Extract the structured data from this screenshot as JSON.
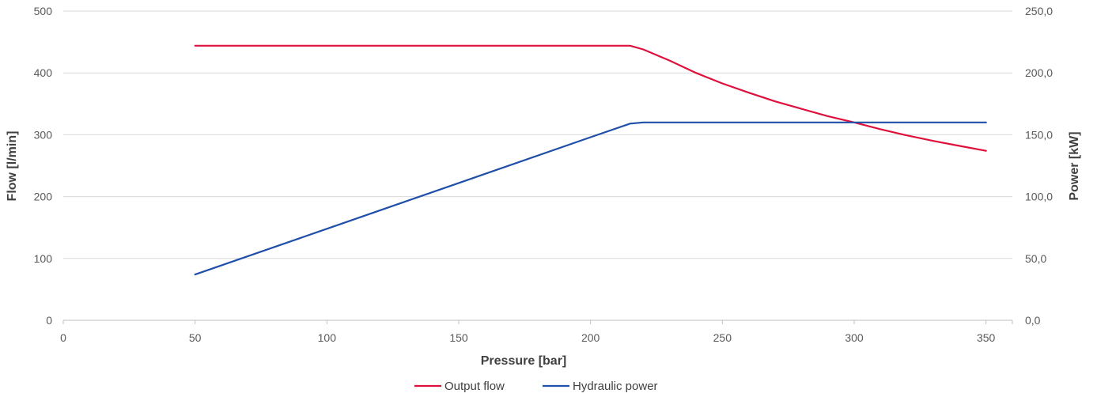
{
  "chart_data": {
    "type": "line",
    "xlabel": "Pressure [bar]",
    "ylabel": "Flow [l/min]",
    "y2label": "Power [kW]",
    "xlim": [
      0,
      360
    ],
    "xticks": [
      "0",
      "50",
      "100",
      "150",
      "200",
      "250",
      "300",
      "350"
    ],
    "ylim": [
      0,
      500
    ],
    "yticks": [
      "0",
      "100",
      "200",
      "300",
      "400",
      "500"
    ],
    "y2lim": [
      0,
      250
    ],
    "y2ticks": [
      "0,0",
      "50,0",
      "100,0",
      "150,0",
      "200,0",
      "250,0"
    ],
    "grid": true,
    "legend_position": "bottom",
    "series": [
      {
        "name": "Output flow",
        "axis": "left",
        "color": "#e0103c",
        "x": [
          50,
          100,
          150,
          200,
          215,
          220,
          230,
          240,
          250,
          260,
          270,
          280,
          290,
          300,
          310,
          320,
          330,
          340,
          350
        ],
        "y": [
          444,
          444,
          444,
          444,
          444,
          438,
          420,
          400,
          383,
          368,
          354,
          342,
          330,
          320,
          309,
          299,
          290,
          282,
          274
        ]
      },
      {
        "name": "Hydraulic power",
        "axis": "right",
        "color": "#1f4fa8",
        "x": [
          50,
          100,
          150,
          200,
          215,
          220,
          250,
          300,
          350
        ],
        "y": [
          37,
          74,
          111,
          148,
          159,
          160,
          160,
          160,
          160
        ]
      }
    ]
  }
}
